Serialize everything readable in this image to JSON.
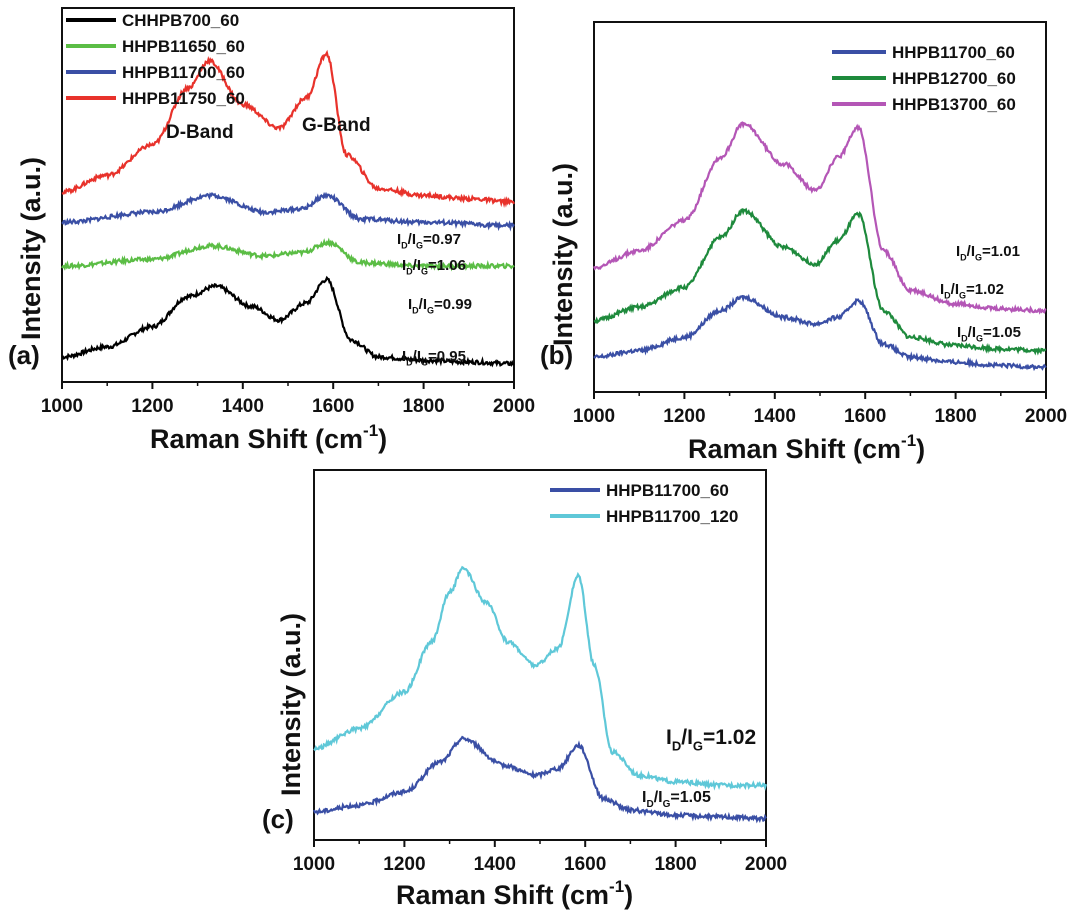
{
  "colors": {
    "black": "#000000",
    "green": "#5bbd45",
    "blue": "#3a4fa5",
    "red": "#e8322b",
    "darkgreen": "#1e8a3c",
    "purple": "#b456b6",
    "cyan": "#5fc8d8"
  },
  "panels_text": [
    {
      "label": "(a)",
      "xlabel": "Raman Shift (cm",
      "xlabel_sup": "-1",
      "ylabel": "Intensity (a.u.)"
    },
    {
      "label": "(b)",
      "xlabel": "Raman Shift (cm",
      "xlabel_sup": "-1",
      "ylabel": "Intensity (a.u.)"
    },
    {
      "label": "(c)",
      "xlabel": "Raman Shift (cm",
      "xlabel_sup": "-1",
      "ylabel": "Intensity (a.u.)"
    }
  ],
  "chart_data": [
    {
      "type": "line",
      "panel": "(a)",
      "x_range": [
        1000,
        2000
      ],
      "x_ticks": [
        "1000",
        "1200",
        "1400",
        "1600",
        "1800",
        "2000"
      ],
      "legend_position": "top-left",
      "annotations": [
        "D-Band",
        "G-Band"
      ],
      "series": [
        {
          "name": "CHHPB700_60",
          "color": "#000000",
          "baseline": 0.02,
          "x": [
            1000,
            1100,
            1200,
            1280,
            1340,
            1420,
            1480,
            1540,
            1585,
            1640,
            1700,
            1800,
            1900,
            2000
          ],
          "y": [
            0.03,
            0.06,
            0.12,
            0.21,
            0.24,
            0.18,
            0.14,
            0.19,
            0.26,
            0.08,
            0.03,
            0.02,
            0.015,
            0.01
          ],
          "ratio": "0.95"
        },
        {
          "name": "HHPB11650_60",
          "color": "#5bbd45",
          "x": [
            1000,
            1200,
            1330,
            1450,
            1530,
            1590,
            1660,
            1800,
            2000
          ],
          "y": [
            0.3,
            0.32,
            0.36,
            0.33,
            0.34,
            0.37,
            0.31,
            0.3,
            0.3
          ],
          "ratio": "0.99"
        },
        {
          "name": "HHPB11700_60",
          "color": "#3a4fa5",
          "x": [
            1000,
            1200,
            1330,
            1450,
            1530,
            1585,
            1660,
            1800,
            2000
          ],
          "y": [
            0.43,
            0.46,
            0.51,
            0.46,
            0.47,
            0.51,
            0.44,
            0.43,
            0.42
          ],
          "ratio": "1.06"
        },
        {
          "name": "HHPB11750_60",
          "color": "#e8322b",
          "x": [
            1000,
            1100,
            1200,
            1280,
            1325,
            1400,
            1480,
            1540,
            1585,
            1630,
            1700,
            1800,
            1900,
            2000
          ],
          "y": [
            0.52,
            0.57,
            0.66,
            0.83,
            0.91,
            0.78,
            0.71,
            0.8,
            0.93,
            0.63,
            0.53,
            0.51,
            0.5,
            0.49
          ],
          "ratio": "0.97"
        }
      ]
    },
    {
      "type": "line",
      "panel": "(b)",
      "x_range": [
        1000,
        2000
      ],
      "x_ticks": [
        "1000",
        "1200",
        "1400",
        "1600",
        "1800",
        "2000"
      ],
      "legend_position": "top-right",
      "series": [
        {
          "name": "HHPB11700_60",
          "color": "#3a4fa5",
          "x": [
            1000,
            1100,
            1200,
            1280,
            1330,
            1420,
            1490,
            1540,
            1585,
            1640,
            1700,
            1800,
            1900,
            2000
          ],
          "y": [
            0.06,
            0.08,
            0.12,
            0.2,
            0.24,
            0.18,
            0.16,
            0.18,
            0.23,
            0.1,
            0.06,
            0.045,
            0.035,
            0.03
          ],
          "ratio": "1.05"
        },
        {
          "name": "HHPB12700_60",
          "color": "#1e8a3c",
          "x": [
            1000,
            1100,
            1200,
            1280,
            1330,
            1420,
            1490,
            1540,
            1585,
            1640,
            1700,
            1800,
            1900,
            2000
          ],
          "y": [
            0.17,
            0.21,
            0.27,
            0.42,
            0.5,
            0.39,
            0.34,
            0.41,
            0.49,
            0.2,
            0.12,
            0.095,
            0.085,
            0.08
          ],
          "ratio": "1.02"
        },
        {
          "name": "HHPB13700_60",
          "color": "#b456b6",
          "x": [
            1000,
            1100,
            1200,
            1280,
            1330,
            1420,
            1490,
            1540,
            1585,
            1640,
            1700,
            1800,
            1900,
            2000
          ],
          "y": [
            0.33,
            0.38,
            0.47,
            0.66,
            0.76,
            0.64,
            0.56,
            0.66,
            0.75,
            0.38,
            0.26,
            0.22,
            0.205,
            0.2
          ],
          "ratio": "1.01"
        }
      ]
    },
    {
      "type": "line",
      "panel": "(c)",
      "x_range": [
        1000,
        2000
      ],
      "x_ticks": [
        "1000",
        "1200",
        "1400",
        "1600",
        "1800",
        "2000"
      ],
      "legend_position": "top-right",
      "series": [
        {
          "name": "HHPB11700_60",
          "color": "#3a4fa5",
          "x": [
            1000,
            1100,
            1200,
            1280,
            1330,
            1420,
            1490,
            1540,
            1585,
            1640,
            1700,
            1800,
            1900,
            2000
          ],
          "y": [
            0.04,
            0.06,
            0.1,
            0.19,
            0.26,
            0.18,
            0.15,
            0.17,
            0.24,
            0.08,
            0.045,
            0.03,
            0.025,
            0.02
          ],
          "ratio": "1.05"
        },
        {
          "name": "HHPB11700_120",
          "color": "#5fc8d8",
          "x": [
            1000,
            1100,
            1200,
            1260,
            1300,
            1330,
            1380,
            1430,
            1490,
            1540,
            1585,
            1620,
            1660,
            1720,
            1800,
            1900,
            2000
          ],
          "y": [
            0.23,
            0.29,
            0.4,
            0.55,
            0.7,
            0.77,
            0.67,
            0.55,
            0.48,
            0.53,
            0.75,
            0.48,
            0.22,
            0.15,
            0.13,
            0.12,
            0.12
          ],
          "ratio": "1.02"
        }
      ]
    }
  ]
}
